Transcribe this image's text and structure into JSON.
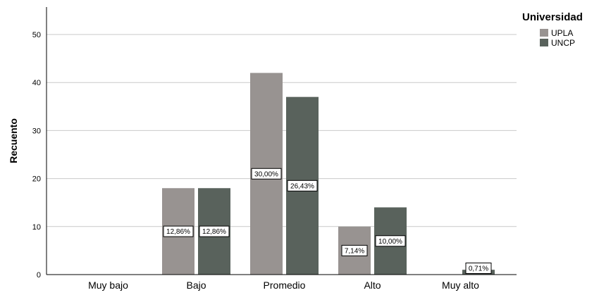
{
  "chart_data": {
    "type": "bar",
    "categories": [
      "Muy bajo",
      "Bajo",
      "Promedio",
      "Alto",
      "Muy alto"
    ],
    "series": [
      {
        "name": "UPLA",
        "color": "#989391",
        "values": [
          0,
          18,
          42,
          10,
          0
        ],
        "labels": [
          "",
          "12,86%",
          "30,00%",
          "7,14%",
          ""
        ]
      },
      {
        "name": "UNCP",
        "color": "#59625c",
        "values": [
          0,
          18,
          37,
          14,
          1
        ],
        "labels": [
          "",
          "12,86%",
          "26,43%",
          "10,00%",
          "0,71%"
        ]
      }
    ],
    "xlabel": "",
    "ylabel": "Recuento",
    "ylim": [
      0,
      55
    ],
    "yticks": [
      0,
      10,
      20,
      30,
      40,
      50
    ],
    "grid": true,
    "legend": {
      "title": "Universidad",
      "position": "top-right"
    }
  }
}
